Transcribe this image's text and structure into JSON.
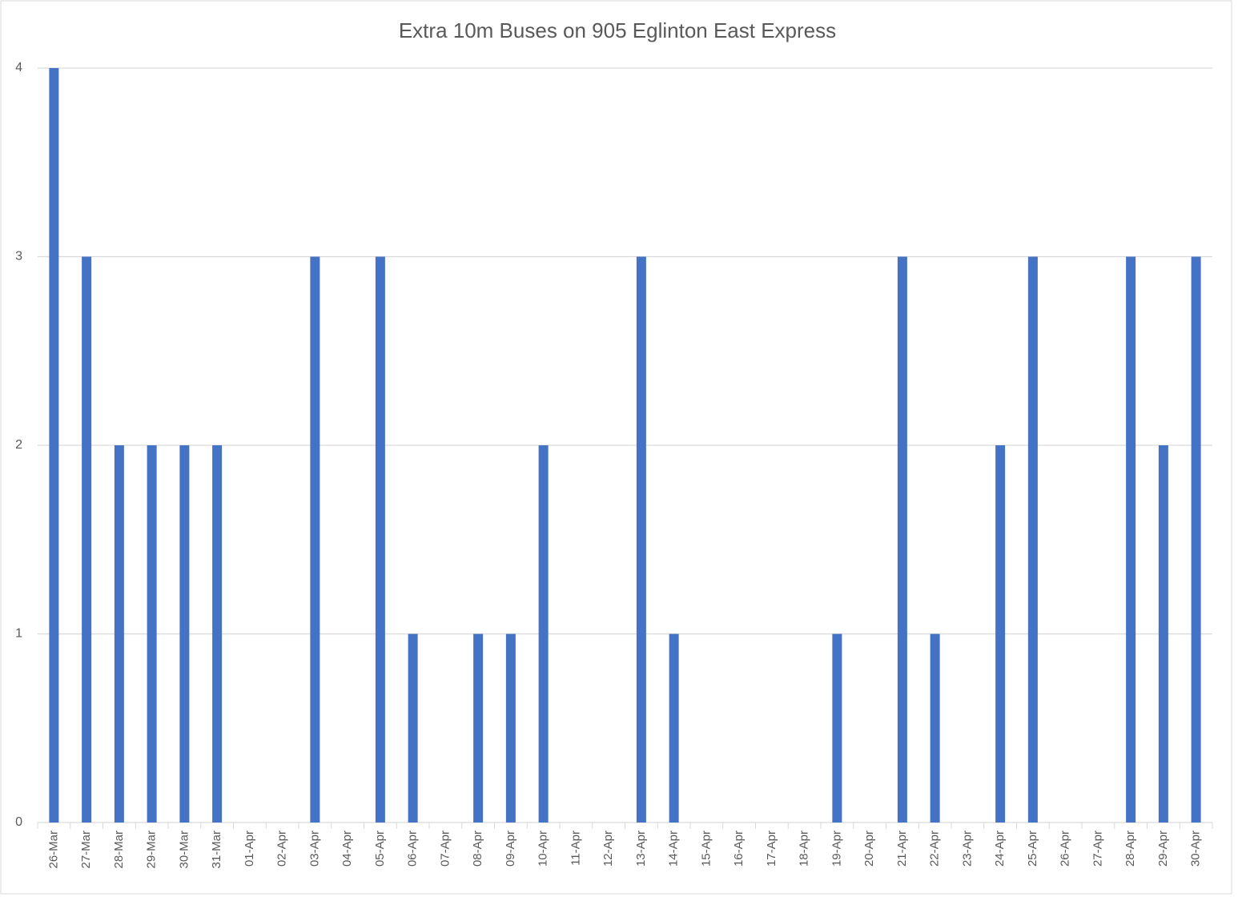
{
  "chart_data": {
    "type": "bar",
    "title": "Extra 10m Buses on 905 Eglinton East Express",
    "categories": [
      "26-Mar",
      "27-Mar",
      "28-Mar",
      "29-Mar",
      "30-Mar",
      "31-Mar",
      "01-Apr",
      "02-Apr",
      "03-Apr",
      "04-Apr",
      "05-Apr",
      "06-Apr",
      "07-Apr",
      "08-Apr",
      "09-Apr",
      "10-Apr",
      "11-Apr",
      "12-Apr",
      "13-Apr",
      "14-Apr",
      "15-Apr",
      "16-Apr",
      "17-Apr",
      "18-Apr",
      "19-Apr",
      "20-Apr",
      "21-Apr",
      "22-Apr",
      "23-Apr",
      "24-Apr",
      "25-Apr",
      "26-Apr",
      "27-Apr",
      "28-Apr",
      "29-Apr",
      "30-Apr"
    ],
    "values": [
      4,
      3,
      2,
      2,
      2,
      2,
      0,
      0,
      3,
      0,
      3,
      1,
      0,
      1,
      1,
      2,
      0,
      0,
      3,
      1,
      0,
      0,
      0,
      0,
      1,
      0,
      3,
      1,
      0,
      2,
      3,
      0,
      0,
      3,
      2,
      3
    ],
    "color": "#4472c4",
    "ylim": [
      0,
      4
    ],
    "yticks": [
      0,
      1,
      2,
      3,
      4
    ],
    "grid": true
  }
}
